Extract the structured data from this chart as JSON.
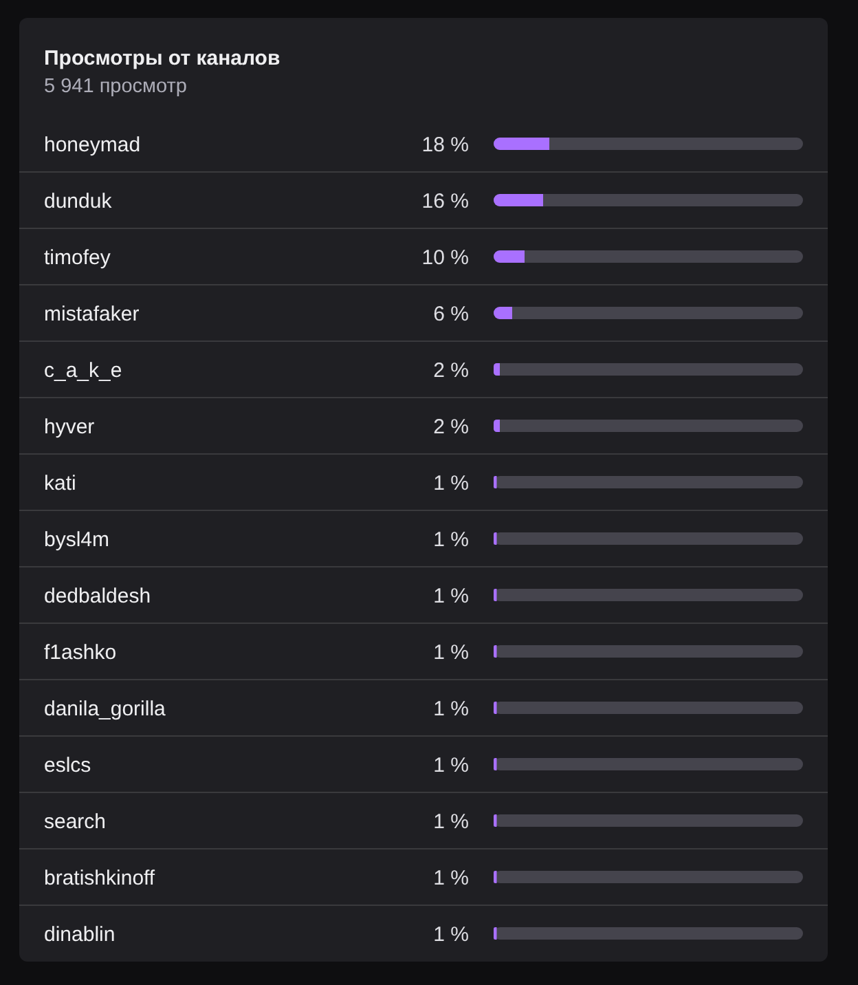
{
  "chart_data": {
    "type": "bar",
    "orientation": "horizontal",
    "title": "Просмотры от каналов",
    "subtitle": "5 941 просмотр",
    "categories": [
      "honeymad",
      "dunduk",
      "timofey",
      "mistafaker",
      "c_a_k_e",
      "hyver",
      "kati",
      "bysl4m",
      "dedbaldesh",
      "f1ashko",
      "danila_gorilla",
      "eslcs",
      "search",
      "bratishkinoff",
      "dinablin"
    ],
    "values": [
      18,
      16,
      10,
      6,
      2,
      2,
      1,
      1,
      1,
      1,
      1,
      1,
      1,
      1,
      1
    ],
    "value_labels": [
      "18 %",
      "16 %",
      "10 %",
      "6 %",
      "2 %",
      "2 %",
      "1 %",
      "1 %",
      "1 %",
      "1 %",
      "1 %",
      "1 %",
      "1 %",
      "1 %",
      "1 %"
    ],
    "color": "#a970ff",
    "xlim": [
      0,
      100
    ],
    "tick_labels": "y",
    "grid": "y"
  }
}
